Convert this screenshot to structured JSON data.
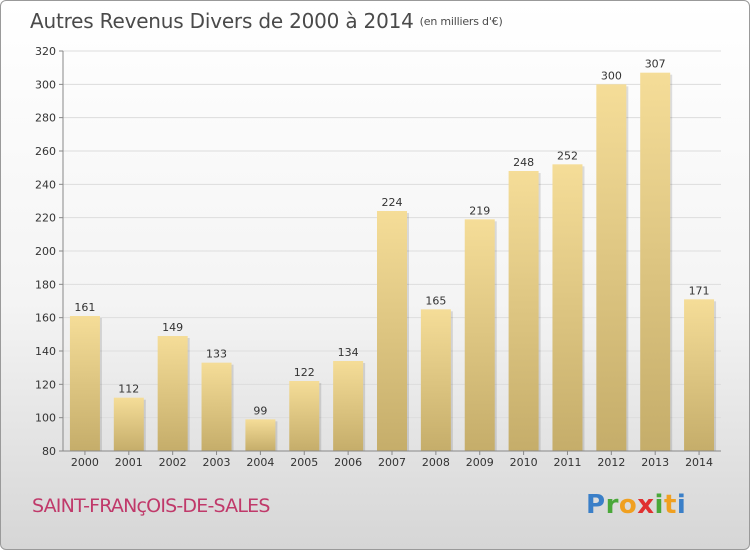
{
  "chart_data": {
    "type": "bar",
    "title": "Autres Revenus Divers de 2000 à 2014",
    "subtitle": "(en milliers d'€)",
    "categories": [
      "2000",
      "2001",
      "2002",
      "2003",
      "2004",
      "2005",
      "2006",
      "2007",
      "2008",
      "2009",
      "2010",
      "2011",
      "2012",
      "2013",
      "2014"
    ],
    "values": [
      161,
      112,
      149,
      133,
      99,
      122,
      134,
      224,
      165,
      219,
      248,
      252,
      300,
      307,
      171
    ],
    "yticks": [
      80,
      100,
      120,
      140,
      160,
      180,
      200,
      220,
      240,
      260,
      280,
      300,
      320
    ],
    "ylim": [
      80,
      320
    ],
    "xlabel": "",
    "ylabel": "",
    "grid": true,
    "bar_color_light": "#f5dd98",
    "bar_color_dark": "#c5ad6a"
  },
  "footer": {
    "city": "SAINT-FRANçOIS-DE-SALES",
    "logo": [
      "P",
      "r",
      "o",
      "x",
      "i",
      "t",
      "i"
    ]
  }
}
